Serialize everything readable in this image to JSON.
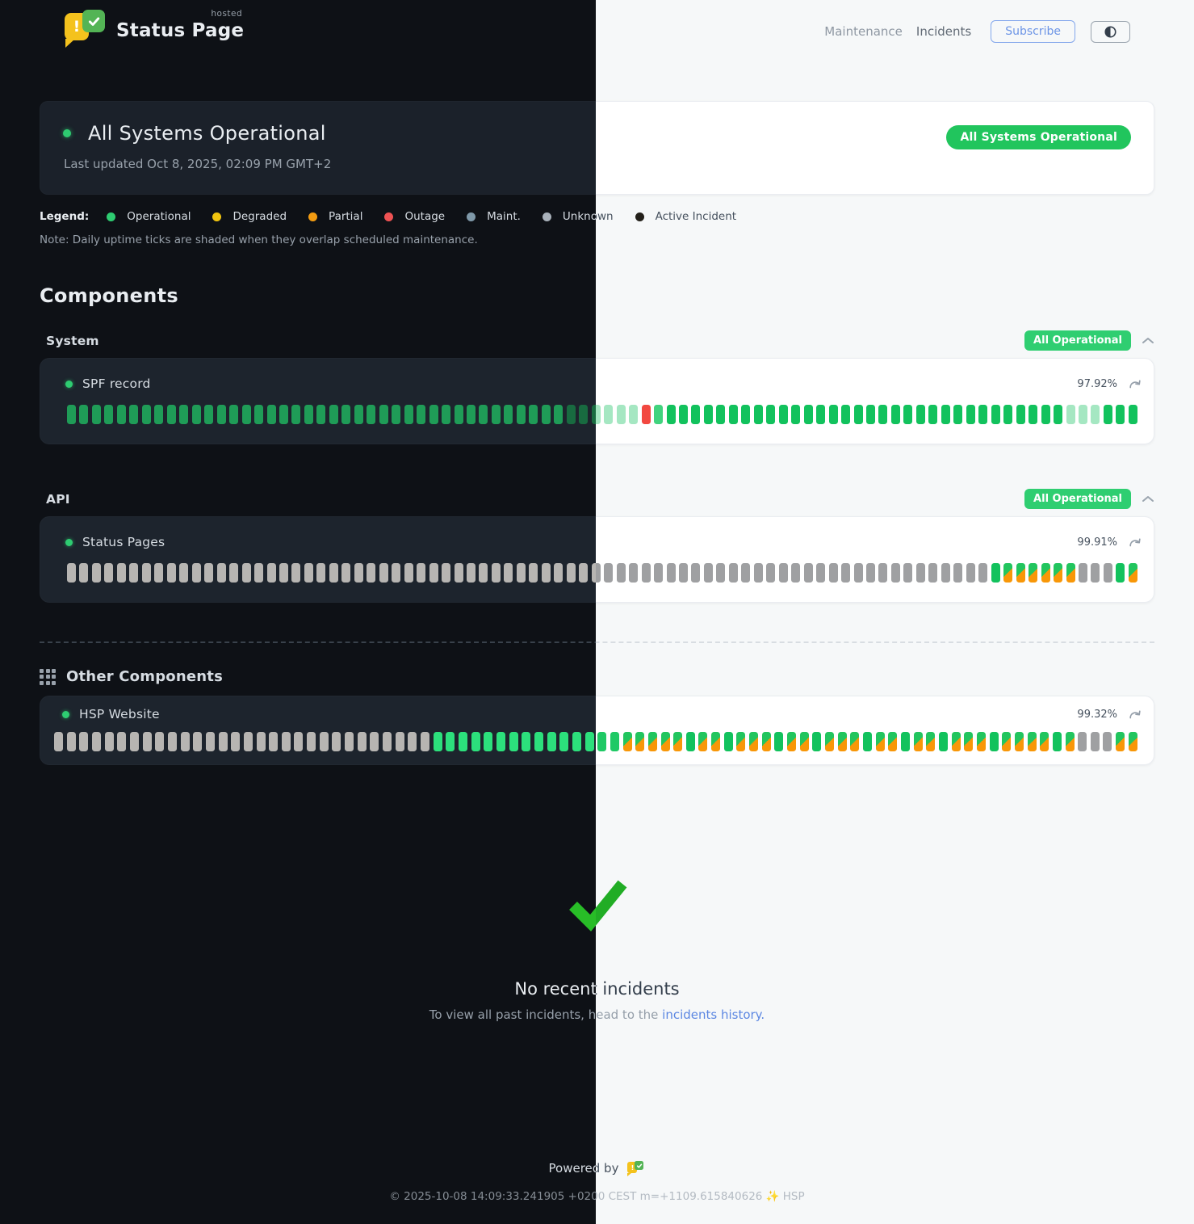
{
  "brand": {
    "name": "Status Page",
    "hosted_label": "hosted",
    "logo_mark": "!"
  },
  "nav": {
    "maintenance": "Maintenance",
    "incidents": "Incidents",
    "subscribe": "Subscribe"
  },
  "status_banner": {
    "title": "All Systems Operational",
    "last_updated": "Last updated Oct 8, 2025, 02:09 PM GMT+2",
    "badge": "All Systems Operational",
    "badge_color": "#21c55d"
  },
  "legend": {
    "label": "Legend:",
    "items": [
      {
        "label": "Operational",
        "color": "#2ecc71"
      },
      {
        "label": "Degraded",
        "color": "#f1c40f"
      },
      {
        "label": "Partial",
        "color": "#f39c12"
      },
      {
        "label": "Outage",
        "color": "#ee5253"
      },
      {
        "label": "Maint.",
        "color": "#7f99a9"
      },
      {
        "label": "Unknown",
        "color": "#a9b1ba"
      },
      {
        "label": "Active Incident",
        "color": "#23201a"
      }
    ],
    "note": "Note: Daily uptime ticks are shaded when they overlap scheduled maintenance."
  },
  "components": {
    "heading": "Components",
    "groups": [
      {
        "name": "System",
        "badge": "All Operational",
        "items": [
          {
            "name": "SPF record",
            "uptime": "97.92%",
            "ticks": "oooooooooooooooooooooooooooooooooooooooossssssxloooooooooooooooooooooooooooooooosssooo"
          }
        ]
      },
      {
        "name": "API",
        "badge": "All Operational",
        "items": [
          {
            "name": "Status Pages",
            "uptime": "99.91%",
            "ticks": "uuuuuuuuuuuuuuuuuuuuuuuuuuuuuuuuuuuuuuuuuuuuuuuuuuuuuuuuuuuuuuuuuuuuuuuuuuommmmmmuuuom"
          }
        ]
      }
    ],
    "other": {
      "heading": "Other Components",
      "items": [
        {
          "name": "HSP Website",
          "uptime": "99.32%",
          "ticks": "uuuuuuuuuuuuuuuuuuuuuuuuuuuuuubbbbbbbbbbbbbbbmmmmmommommmommommmommommommmommmmomuuumm"
        }
      ]
    },
    "tick_status_key": {
      "o": "operational",
      "b": "operational-recent",
      "s": "shaded-maintenance-overlap",
      "x": "outage",
      "u": "unknown",
      "m": "operational-maintenance-split",
      "l": "operational-partial"
    }
  },
  "incidents": {
    "title": "No recent incidents",
    "subtitle_prefix": "To view all past incidents, head to the ",
    "link_text": "incidents history."
  },
  "footer": {
    "powered_by": "Powered by",
    "copyright": "© 2025-10-08 14:09:33.241905 +0200 CEST m=+1109.615840626 ✨ HSP"
  }
}
